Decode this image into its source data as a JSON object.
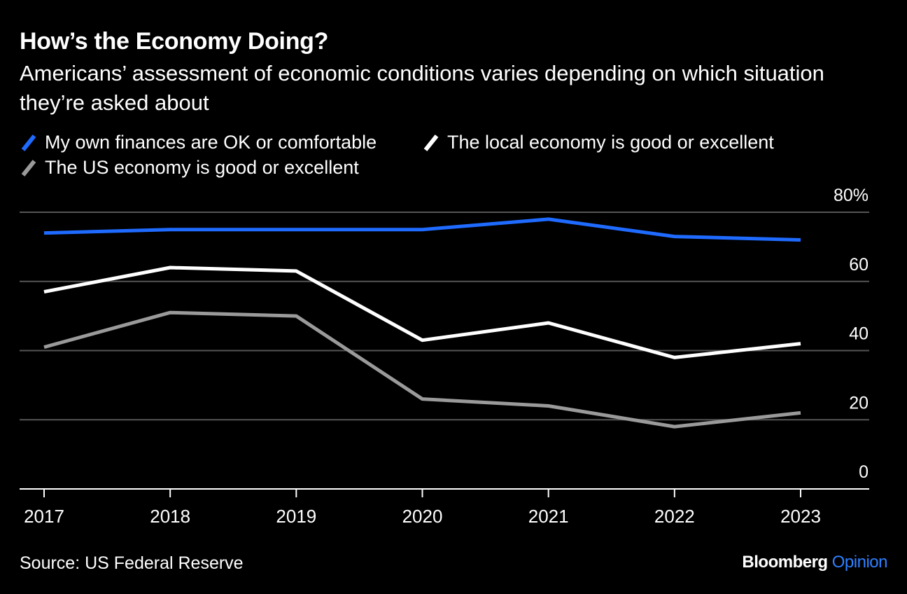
{
  "title": "How’s the Economy Doing?",
  "subtitle": "Americans’ assessment of economic conditions varies depending on which situation they’re asked about",
  "legend": [
    {
      "label": "My own finances are OK or comfortable",
      "color": "#1f6bff"
    },
    {
      "label": "The local economy is good or excellent",
      "color": "#ffffff"
    },
    {
      "label": "The US economy is good or excellent",
      "color": "#9a9a9a"
    }
  ],
  "source": "Source: US Federal Reserve",
  "brand": {
    "name": "Bloomberg",
    "suffix": "Opinion"
  },
  "chart_data": {
    "type": "line",
    "x": [
      "2017",
      "2018",
      "2019",
      "2020",
      "2021",
      "2022",
      "2023"
    ],
    "ylim": [
      0,
      80
    ],
    "yticks": [
      0,
      20,
      40,
      60,
      80
    ],
    "ytick_labels": [
      "0",
      "20",
      "40",
      "60",
      "80%"
    ],
    "grid": true,
    "legend_position": "top-left",
    "series": [
      {
        "name": "My own finances are OK or comfortable",
        "color": "#1f6bff",
        "values": [
          74,
          75,
          75,
          75,
          78,
          73,
          72
        ]
      },
      {
        "name": "The local economy is good or excellent",
        "color": "#ffffff",
        "values": [
          57,
          64,
          63,
          43,
          48,
          38,
          42
        ]
      },
      {
        "name": "The US economy is good or excellent",
        "color": "#9a9a9a",
        "values": [
          41,
          51,
          50,
          26,
          24,
          18,
          22
        ]
      }
    ]
  }
}
